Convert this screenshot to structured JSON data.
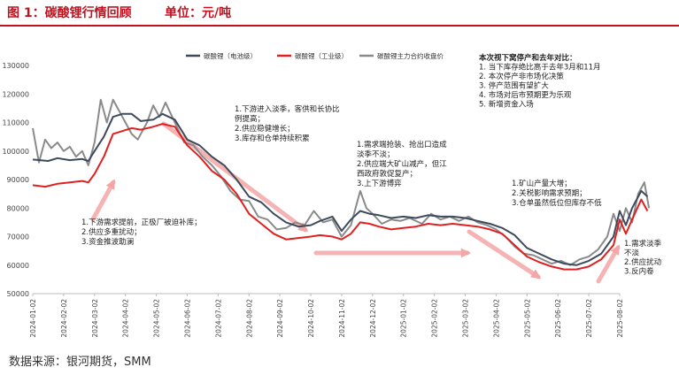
{
  "header": {
    "figure_title": "图 1：碳酸锂行情回顾",
    "unit": "单位：元/吨"
  },
  "source": "数据来源：银河期货，SMM",
  "chart_data": {
    "type": "line",
    "x_tick_labels": [
      "2024-01-02",
      "2024-02-02",
      "2024-03-02",
      "2024-04-02",
      "2024-05-02",
      "2024-06-02",
      "2024-07-02",
      "2024-08-02",
      "2024-09-02",
      "2024-10-02",
      "2024-11-02",
      "2024-12-02",
      "2025-01-02",
      "2025-02-02",
      "2025-03-02",
      "2025-04-02",
      "2025-05-02",
      "2025-06-02",
      "2025-07-02",
      "2025-08-02"
    ],
    "ylim": [
      50000,
      130000
    ],
    "y_ticks": [
      50000,
      60000,
      70000,
      80000,
      90000,
      100000,
      110000,
      120000,
      130000
    ],
    "legend_position": "top",
    "series": [
      {
        "name": "碳酸锂（电池级）",
        "color": "#3d4a5c",
        "values": [
          [
            0,
            97000
          ],
          [
            0.5,
            96500
          ],
          [
            0.8,
            97500
          ],
          [
            1.2,
            96800
          ],
          [
            1.6,
            97200
          ],
          [
            1.8,
            96500
          ],
          [
            2.0,
            100000
          ],
          [
            2.3,
            105000
          ],
          [
            2.6,
            112000
          ],
          [
            2.9,
            113000
          ],
          [
            3.2,
            113000
          ],
          [
            3.5,
            110500
          ],
          [
            3.9,
            111000
          ],
          [
            4.2,
            113000
          ],
          [
            4.6,
            111000
          ],
          [
            5.0,
            104000
          ],
          [
            5.4,
            102000
          ],
          [
            5.8,
            98000
          ],
          [
            6.2,
            95000
          ],
          [
            6.6,
            90000
          ],
          [
            7.0,
            84000
          ],
          [
            7.4,
            82000
          ],
          [
            7.8,
            78000
          ],
          [
            8.2,
            75000
          ],
          [
            8.6,
            73500
          ],
          [
            9.0,
            74000
          ],
          [
            9.3,
            75500
          ],
          [
            9.7,
            77000
          ],
          [
            10.0,
            72000
          ],
          [
            10.3,
            76000
          ],
          [
            10.6,
            79000
          ],
          [
            10.9,
            78000
          ],
          [
            11.2,
            77500
          ],
          [
            11.6,
            76500
          ],
          [
            12.0,
            77000
          ],
          [
            12.4,
            76500
          ],
          [
            12.8,
            77500
          ],
          [
            13.2,
            77000
          ],
          [
            13.6,
            77000
          ],
          [
            14.0,
            76500
          ],
          [
            14.4,
            75500
          ],
          [
            14.8,
            74500
          ],
          [
            15.2,
            73000
          ],
          [
            15.6,
            70500
          ],
          [
            16.0,
            66000
          ],
          [
            16.4,
            64000
          ],
          [
            16.8,
            62000
          ],
          [
            17.2,
            60500
          ],
          [
            17.6,
            60000
          ],
          [
            18.0,
            61500
          ],
          [
            18.4,
            64000
          ],
          [
            18.8,
            70000
          ],
          [
            19.0,
            79000
          ],
          [
            19.2,
            74000
          ],
          [
            19.4,
            80000
          ],
          [
            19.7,
            86000
          ],
          [
            19.9,
            84000
          ]
        ]
      },
      {
        "name": "碳酸锂（工业级）",
        "color": "#e02020",
        "values": [
          [
            0,
            88000
          ],
          [
            0.4,
            87500
          ],
          [
            0.8,
            88500
          ],
          [
            1.2,
            89000
          ],
          [
            1.6,
            89500
          ],
          [
            1.8,
            89000
          ],
          [
            2.0,
            92000
          ],
          [
            2.3,
            98000
          ],
          [
            2.6,
            106000
          ],
          [
            2.9,
            107000
          ],
          [
            3.2,
            108000
          ],
          [
            3.5,
            107500
          ],
          [
            3.9,
            108500
          ],
          [
            4.2,
            109500
          ],
          [
            4.6,
            108500
          ],
          [
            5.0,
            102000
          ],
          [
            5.4,
            98000
          ],
          [
            5.8,
            93000
          ],
          [
            6.2,
            90000
          ],
          [
            6.6,
            85000
          ],
          [
            7.0,
            78000
          ],
          [
            7.4,
            74500
          ],
          [
            7.8,
            71000
          ],
          [
            8.2,
            69000
          ],
          [
            8.6,
            69500
          ],
          [
            9.0,
            70000
          ],
          [
            9.3,
            70500
          ],
          [
            9.7,
            70000
          ],
          [
            10.0,
            69000
          ],
          [
            10.3,
            71000
          ],
          [
            10.6,
            75000
          ],
          [
            10.9,
            74500
          ],
          [
            11.2,
            73500
          ],
          [
            11.6,
            72500
          ],
          [
            12.0,
            73000
          ],
          [
            12.4,
            73500
          ],
          [
            12.8,
            74500
          ],
          [
            13.2,
            74000
          ],
          [
            13.6,
            74500
          ],
          [
            14.0,
            74000
          ],
          [
            14.4,
            73500
          ],
          [
            14.8,
            72500
          ],
          [
            15.2,
            71000
          ],
          [
            15.6,
            67000
          ],
          [
            16.0,
            63000
          ],
          [
            16.4,
            61000
          ],
          [
            16.8,
            59500
          ],
          [
            17.2,
            58500
          ],
          [
            17.6,
            58500
          ],
          [
            18.0,
            59500
          ],
          [
            18.4,
            62000
          ],
          [
            18.8,
            67000
          ],
          [
            19.0,
            76000
          ],
          [
            19.2,
            71000
          ],
          [
            19.4,
            76000
          ],
          [
            19.7,
            83000
          ],
          [
            19.9,
            79000
          ]
        ]
      },
      {
        "name": "碳酸锂主力合约收盘价",
        "color": "#8a8a8a",
        "values": [
          [
            0,
            108000
          ],
          [
            0.2,
            96000
          ],
          [
            0.4,
            104000
          ],
          [
            0.6,
            101000
          ],
          [
            0.8,
            103000
          ],
          [
            1.0,
            100000
          ],
          [
            1.2,
            101500
          ],
          [
            1.4,
            98000
          ],
          [
            1.6,
            100000
          ],
          [
            1.8,
            95000
          ],
          [
            2.0,
            103000
          ],
          [
            2.2,
            118000
          ],
          [
            2.4,
            110000
          ],
          [
            2.6,
            118000
          ],
          [
            2.8,
            114000
          ],
          [
            3.0,
            110000
          ],
          [
            3.2,
            106000
          ],
          [
            3.4,
            104000
          ],
          [
            3.7,
            110000
          ],
          [
            3.9,
            116000
          ],
          [
            4.1,
            112000
          ],
          [
            4.3,
            117000
          ],
          [
            4.6,
            110000
          ],
          [
            4.9,
            103000
          ],
          [
            5.2,
            102000
          ],
          [
            5.5,
            98000
          ],
          [
            5.8,
            95000
          ],
          [
            6.1,
            91000
          ],
          [
            6.4,
            86000
          ],
          [
            6.7,
            83000
          ],
          [
            7.0,
            82500
          ],
          [
            7.3,
            77000
          ],
          [
            7.6,
            76000
          ],
          [
            7.9,
            72500
          ],
          [
            8.2,
            73000
          ],
          [
            8.5,
            75000
          ],
          [
            8.8,
            74000
          ],
          [
            9.1,
            79000
          ],
          [
            9.4,
            75000
          ],
          [
            9.7,
            76000
          ],
          [
            10.0,
            70000
          ],
          [
            10.3,
            74000
          ],
          [
            10.6,
            86000
          ],
          [
            10.8,
            80000
          ],
          [
            11.0,
            78000
          ],
          [
            11.3,
            74500
          ],
          [
            11.6,
            76000
          ],
          [
            11.9,
            75500
          ],
          [
            12.2,
            76500
          ],
          [
            12.6,
            74500
          ],
          [
            12.9,
            78000
          ],
          [
            13.2,
            76000
          ],
          [
            13.5,
            77000
          ],
          [
            13.8,
            75500
          ],
          [
            14.1,
            77000
          ],
          [
            14.4,
            75000
          ],
          [
            14.7,
            74000
          ],
          [
            15.0,
            72500
          ],
          [
            15.3,
            70000
          ],
          [
            15.6,
            66500
          ],
          [
            15.9,
            64000
          ],
          [
            16.2,
            63500
          ],
          [
            16.5,
            62000
          ],
          [
            16.8,
            60500
          ],
          [
            17.1,
            61500
          ],
          [
            17.4,
            60000
          ],
          [
            17.7,
            62000
          ],
          [
            18.0,
            63000
          ],
          [
            18.3,
            65500
          ],
          [
            18.6,
            70000
          ],
          [
            18.8,
            78000
          ],
          [
            19.0,
            72000
          ],
          [
            19.2,
            80000
          ],
          [
            19.4,
            75000
          ],
          [
            19.6,
            85000
          ],
          [
            19.8,
            89000
          ],
          [
            19.95,
            80000
          ]
        ]
      }
    ],
    "annotations": [
      {
        "lines": [
          "1.下游需求提前，正极厂被迫补库；",
          "2.供应多重扰动；",
          "3.资金推波助澜"
        ]
      },
      {
        "lines": [
          "1.下游进入淡季，客供和长协比",
          "例提高；",
          "2.供应稳健增长；",
          "3.库存和仓单持续积累"
        ]
      },
      {
        "lines": [
          "1.需求端抢装、抢出口造成",
          "淡季不淡；",
          "2.供应端大矿山减产，但江",
          "西政府敦促复产；",
          "3.上下游博弈"
        ]
      },
      {
        "lines": [
          "本次视下窝停产和去年对比：",
          "1.   当下库存绝比高于去年3月和11月",
          "2.   本次停产非市场化决策",
          "3.   停产范围有望扩大",
          "4.   市场对后市预期更为乐观",
          "5.   新增资金入场"
        ]
      },
      {
        "lines": [
          "1.矿山产量大增；",
          "2.关税影响需求预期；",
          "3.仓单虽然低位但库存不低"
        ]
      },
      {
        "lines": [
          "1.需求淡季",
          "不淡",
          "2.供应扰动",
          "3.反内卷"
        ]
      }
    ]
  }
}
